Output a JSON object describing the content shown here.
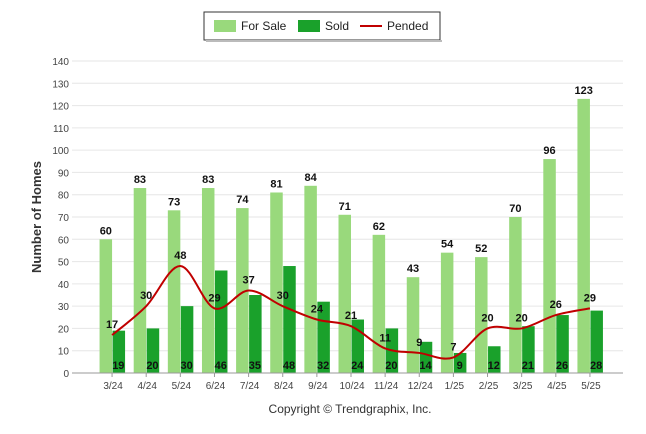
{
  "chart_data": {
    "type": "bar",
    "categories": [
      "3/24",
      "4/24",
      "5/24",
      "6/24",
      "7/24",
      "8/24",
      "9/24",
      "10/24",
      "11/24",
      "12/24",
      "1/25",
      "2/25",
      "3/25",
      "4/25",
      "5/25"
    ],
    "series": [
      {
        "name": "For Sale",
        "kind": "bar",
        "color": "#99d97c",
        "values": [
          60,
          83,
          73,
          83,
          74,
          81,
          84,
          71,
          62,
          43,
          54,
          52,
          70,
          96,
          123
        ]
      },
      {
        "name": "Sold",
        "kind": "bar",
        "color": "#1aa12b",
        "values": [
          19,
          20,
          30,
          46,
          35,
          48,
          32,
          24,
          20,
          14,
          9,
          12,
          21,
          26,
          28
        ]
      },
      {
        "name": "Pended",
        "kind": "line",
        "color": "#c00000",
        "values": [
          17,
          30,
          48,
          29,
          37,
          30,
          24,
          21,
          11,
          9,
          7,
          20,
          20,
          26,
          29
        ]
      }
    ],
    "xlabel": "",
    "ylabel": "Number of Homes",
    "ylim": [
      0,
      140
    ],
    "yticks": [
      0,
      10,
      20,
      30,
      40,
      50,
      60,
      70,
      80,
      90,
      100,
      110,
      120,
      130,
      140
    ],
    "grid": true,
    "legend_position": "top-center",
    "credit": "Copyright © Trendgraphix, Inc."
  }
}
